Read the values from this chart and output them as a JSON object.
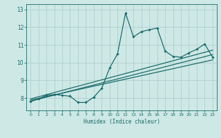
{
  "title": "",
  "xlabel": "Humidex (Indice chaleur)",
  "bg_color": "#cde8e5",
  "grid_color": "#b0d0ce",
  "line_color": "#1a6b6b",
  "xlim": [
    -0.5,
    23.5
  ],
  "ylim": [
    7.3,
    13.3
  ],
  "xticks": [
    0,
    1,
    2,
    3,
    4,
    5,
    6,
    7,
    8,
    9,
    10,
    11,
    12,
    13,
    14,
    15,
    16,
    17,
    18,
    19,
    20,
    21,
    22,
    23
  ],
  "yticks": [
    8,
    9,
    10,
    11,
    12,
    13
  ],
  "main_x": [
    0,
    1,
    2,
    3,
    4,
    5,
    6,
    7,
    8,
    9,
    10,
    11,
    12,
    13,
    14,
    15,
    16,
    17,
    18,
    19,
    20,
    21,
    22,
    23
  ],
  "main_y": [
    7.8,
    7.95,
    8.15,
    8.2,
    8.15,
    8.1,
    7.75,
    7.75,
    8.05,
    8.55,
    9.7,
    10.5,
    12.8,
    11.45,
    11.75,
    11.85,
    11.95,
    10.65,
    10.35,
    10.3,
    10.55,
    10.75,
    11.05,
    10.3
  ],
  "line1_x": [
    0,
    23
  ],
  "line1_y": [
    7.88,
    10.15
  ],
  "line2_x": [
    0,
    23
  ],
  "line2_y": [
    7.82,
    10.45
  ],
  "line3_x": [
    0,
    23
  ],
  "line3_y": [
    7.95,
    10.7
  ]
}
